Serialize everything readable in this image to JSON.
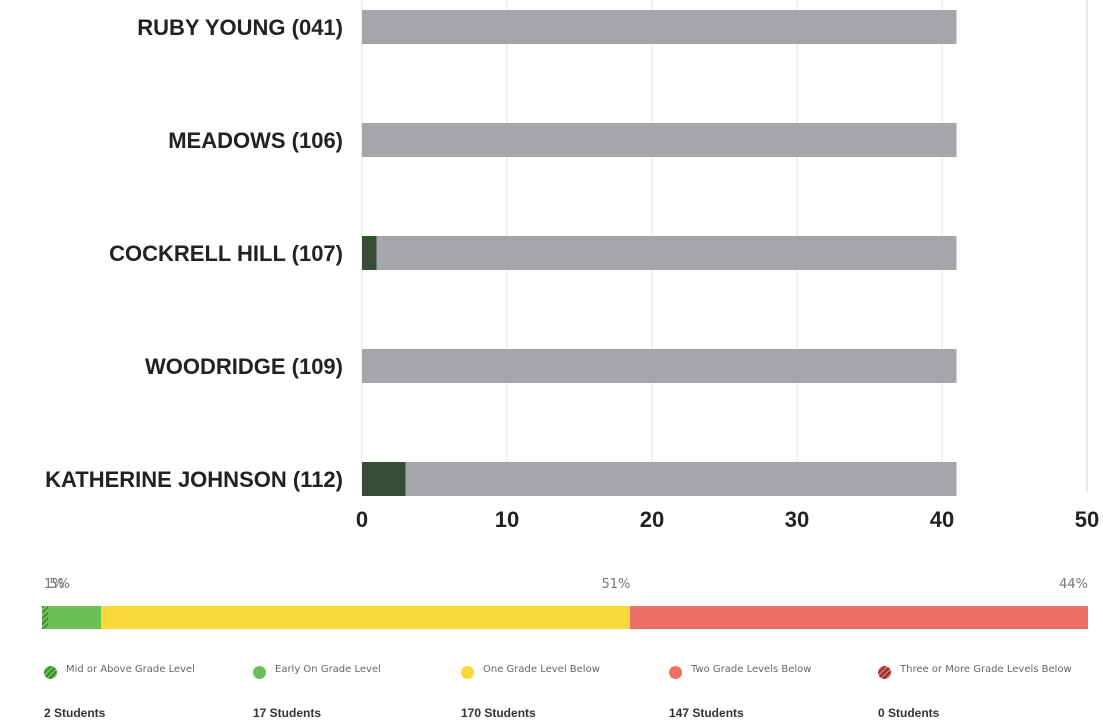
{
  "chart_data": [
    {
      "type": "bar",
      "orientation": "horizontal",
      "stacked": true,
      "categories": [
        "RUBY YOUNG (041)",
        "MEADOWS (106)",
        "COCKRELL HILL (107)",
        "WOODRIDGE (109)",
        "KATHERINE JOHNSON (112)"
      ],
      "series": [
        {
          "values": [
            0,
            0,
            1,
            0,
            3
          ],
          "color": "#344d34"
        },
        {
          "values": [
            41,
            41,
            40,
            41,
            38
          ],
          "color": "#a5a6a9"
        }
      ],
      "xlim": [
        0,
        50
      ],
      "xticks": [
        "0",
        "10",
        "20",
        "30",
        "40",
        "50"
      ],
      "grid": true
    },
    {
      "type": "bar",
      "orientation": "horizontal",
      "stacked": true,
      "percent_labels": [
        "1%",
        "5%",
        "51%",
        "44%"
      ],
      "series": [
        {
          "name": "Mid or Above Grade Level",
          "count": "2 Students",
          "value": 2,
          "color": "#4c9a36",
          "pattern": "hatch"
        },
        {
          "name": "Early On Grade Level",
          "count": "17 Students",
          "value": 17,
          "color": "#6cbf55"
        },
        {
          "name": "One Grade Level Below",
          "count": "170 Students",
          "value": 170,
          "color": "#f9d93a"
        },
        {
          "name": "Two Grade Levels Below",
          "count": "147 Students",
          "value": 147,
          "color": "#ee7168"
        },
        {
          "name": "Three or More Grade Levels Below",
          "count": "0 Students",
          "value": 0,
          "color": "#c9443c",
          "pattern": "hatch"
        }
      ]
    }
  ]
}
